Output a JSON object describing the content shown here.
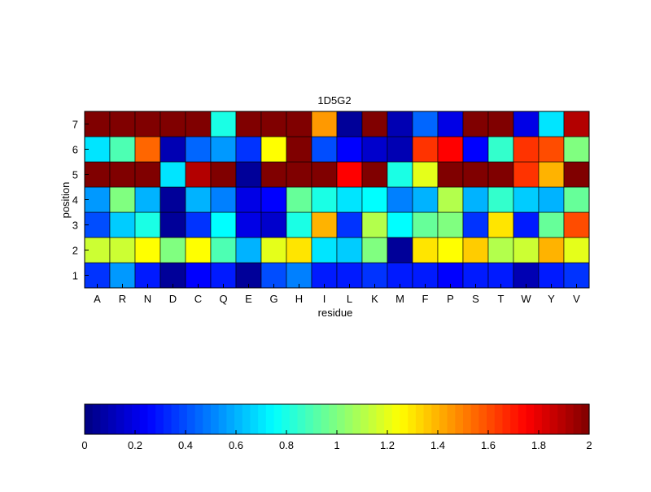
{
  "chart_data": {
    "type": "heatmap",
    "title": "1D5G2",
    "xlabel": "residue",
    "ylabel": "position",
    "x_categories": [
      "A",
      "R",
      "N",
      "D",
      "C",
      "Q",
      "E",
      "G",
      "H",
      "I",
      "L",
      "K",
      "M",
      "F",
      "P",
      "S",
      "T",
      "W",
      "Y",
      "V"
    ],
    "y_categories": [
      "1",
      "2",
      "3",
      "4",
      "5",
      "6",
      "7"
    ],
    "colormap": "jet",
    "value_range": [
      0,
      2
    ],
    "values": [
      [
        0.35,
        0.55,
        0.3,
        0.05,
        0.25,
        0.3,
        0.05,
        0.4,
        0.5,
        0.3,
        0.3,
        0.35,
        0.3,
        0.3,
        0.25,
        0.3,
        0.3,
        0.1,
        0.3,
        0.35
      ],
      [
        1.15,
        1.15,
        1.25,
        1.0,
        1.25,
        0.9,
        0.6,
        1.2,
        1.3,
        0.7,
        0.65,
        1.0,
        0.05,
        1.3,
        1.25,
        1.35,
        1.1,
        1.15,
        1.4,
        1.2
      ],
      [
        0.4,
        0.65,
        0.8,
        0.05,
        0.35,
        0.75,
        0.2,
        0.15,
        0.8,
        1.4,
        0.35,
        1.1,
        0.75,
        0.95,
        1.0,
        0.35,
        1.3,
        0.3,
        0.95,
        1.6
      ],
      [
        0.55,
        1.0,
        0.6,
        0.05,
        0.6,
        0.5,
        0.2,
        0.25,
        0.95,
        0.8,
        0.7,
        0.75,
        0.5,
        0.6,
        1.1,
        0.6,
        0.85,
        0.65,
        0.6,
        0.95
      ],
      [
        2.0,
        2.0,
        2.0,
        0.7,
        1.9,
        2.0,
        0.05,
        2.0,
        2.0,
        2.0,
        1.75,
        2.0,
        0.8,
        1.2,
        2.0,
        2.0,
        2.0,
        1.65,
        1.4,
        2.0
      ],
      [
        0.7,
        0.9,
        1.55,
        0.1,
        0.45,
        0.55,
        0.35,
        1.25,
        2.0,
        0.4,
        0.25,
        0.15,
        0.1,
        1.65,
        1.75,
        0.25,
        0.85,
        1.65,
        1.6,
        1.0
      ],
      [
        2.0,
        2.0,
        2.0,
        2.0,
        2.0,
        0.8,
        2.0,
        2.0,
        2.0,
        1.45,
        0.05,
        2.0,
        0.1,
        0.45,
        0.2,
        2.0,
        2.0,
        0.2,
        0.7,
        1.9
      ]
    ],
    "colorbar": {
      "ticks": [
        0,
        0.2,
        0.4,
        0.6,
        0.8,
        1,
        1.2,
        1.4,
        1.6,
        1.8,
        2
      ],
      "tick_labels": [
        "0",
        "0.2",
        "0.4",
        "0.6",
        "0.8",
        "1",
        "1.2",
        "1.4",
        "1.6",
        "1.8",
        "2"
      ],
      "placement": "bottom"
    }
  }
}
